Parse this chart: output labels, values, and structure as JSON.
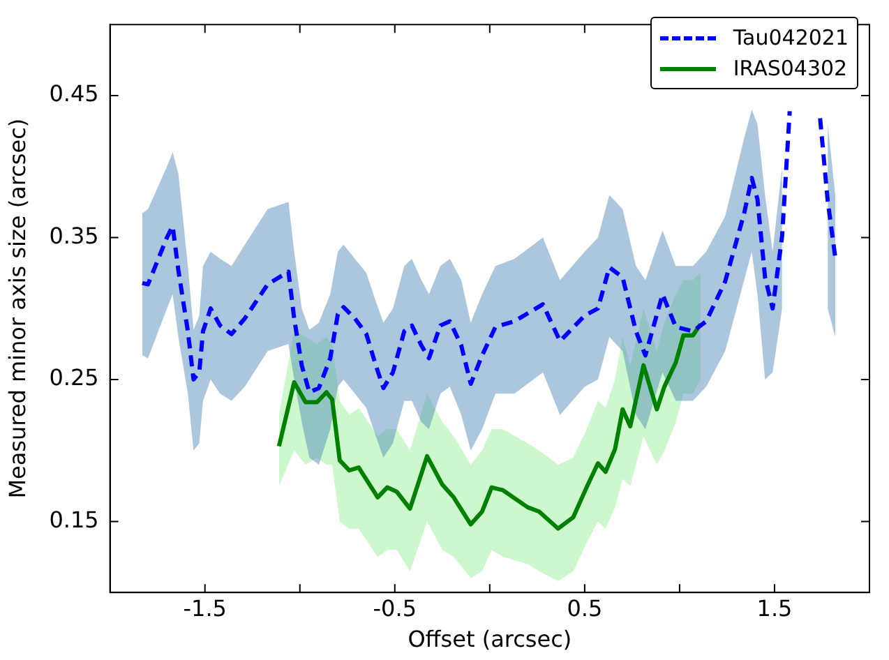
{
  "chart_data": {
    "type": "line",
    "xlabel": "Offset (arcsec)",
    "ylabel": "Measured minor axis size (arcsec)",
    "xlim": [
      -2,
      2
    ],
    "ylim": [
      0.1,
      0.5
    ],
    "xticks": [
      -1.5,
      {
        "value": -1,
        "label": null
      },
      -0.5,
      {
        "value": 0,
        "label": null
      },
      0.5,
      {
        "value": 1,
        "label": null
      },
      1.5
    ],
    "yticks": [
      0.15,
      0.25,
      0.35,
      0.45
    ],
    "grid": false,
    "legend": "top right",
    "marker": "none",
    "series": [
      {
        "name": "Tau042021",
        "color": "#0000ff",
        "line_style": "dashed",
        "x": [
          -1.83,
          -1.8,
          -1.7,
          -1.67,
          -1.64,
          -1.59,
          -1.56,
          -1.53,
          -1.51,
          -1.47,
          -1.42,
          -1.36,
          -1.29,
          -1.17,
          -1.06,
          -1.03,
          -0.99,
          -0.95,
          -0.9,
          -0.84,
          -0.8,
          -0.77,
          -0.71,
          -0.65,
          -0.6,
          -0.56,
          -0.51,
          -0.45,
          -0.41,
          -0.36,
          -0.32,
          -0.26,
          -0.21,
          -0.15,
          -0.1,
          -0.04,
          0.03,
          0.13,
          0.28,
          0.37,
          0.5,
          0.57,
          0.63,
          0.7,
          0.77,
          0.82,
          0.91,
          0.98,
          1.07,
          1.14,
          1.24,
          1.34,
          1.38,
          1.41,
          1.45,
          1.49,
          1.54,
          1.58,
          1.64,
          1.69,
          1.74,
          1.78,
          1.82
        ],
        "values": [
          0.318,
          0.317,
          0.35,
          0.358,
          0.327,
          0.284,
          0.25,
          0.255,
          0.284,
          0.3,
          0.288,
          0.282,
          0.293,
          0.317,
          0.326,
          0.293,
          0.26,
          0.241,
          0.244,
          0.265,
          0.296,
          0.301,
          0.293,
          0.282,
          0.26,
          0.244,
          0.255,
          0.284,
          0.288,
          0.274,
          0.265,
          0.288,
          0.291,
          0.274,
          0.247,
          0.267,
          0.287,
          0.291,
          0.303,
          0.277,
          0.295,
          0.3,
          0.329,
          0.322,
          0.284,
          0.267,
          0.31,
          0.287,
          0.284,
          0.291,
          0.319,
          0.367,
          0.392,
          0.377,
          0.322,
          0.3,
          0.351,
          0.439,
          null,
          null,
          0.434,
          0.376,
          0.336
        ],
        "lower": [
          0.267,
          0.265,
          0.3,
          0.31,
          0.28,
          0.24,
          0.2,
          0.205,
          0.235,
          0.25,
          0.24,
          0.235,
          0.245,
          0.27,
          0.275,
          0.25,
          0.22,
          0.195,
          0.19,
          0.215,
          0.245,
          0.25,
          0.24,
          0.23,
          0.21,
          0.195,
          0.205,
          0.235,
          0.235,
          0.22,
          0.215,
          0.24,
          0.245,
          0.225,
          0.2,
          0.215,
          0.24,
          0.24,
          0.255,
          0.225,
          0.245,
          0.25,
          0.28,
          0.27,
          0.225,
          0.215,
          0.255,
          0.235,
          0.235,
          0.245,
          0.27,
          0.32,
          0.34,
          0.31,
          0.25,
          0.255,
          0.3,
          null,
          null,
          null,
          null,
          0.3,
          0.28
        ],
        "upper": [
          0.367,
          0.37,
          0.4,
          0.41,
          0.395,
          0.33,
          0.285,
          0.295,
          0.33,
          0.34,
          0.335,
          0.33,
          0.345,
          0.37,
          0.375,
          0.34,
          0.3,
          0.285,
          0.29,
          0.31,
          0.34,
          0.345,
          0.335,
          0.325,
          0.305,
          0.29,
          0.3,
          0.33,
          0.335,
          0.32,
          0.31,
          0.33,
          0.335,
          0.32,
          0.29,
          0.31,
          0.33,
          0.335,
          0.35,
          0.32,
          0.34,
          0.35,
          0.38,
          0.37,
          0.33,
          0.32,
          0.355,
          0.33,
          0.33,
          0.34,
          0.365,
          0.42,
          0.44,
          0.43,
          0.38,
          0.34,
          0.4,
          null,
          null,
          null,
          null,
          0.43,
          0.38
        ]
      },
      {
        "name": "IRAS04302",
        "color": "#008000",
        "line_style": "solid",
        "x": [
          -1.11,
          -1.03,
          -0.97,
          -0.91,
          -0.86,
          -0.83,
          -0.79,
          -0.74,
          -0.69,
          -0.59,
          -0.54,
          -0.49,
          -0.42,
          -0.33,
          -0.25,
          -0.19,
          -0.1,
          -0.04,
          0.01,
          0.07,
          0.2,
          0.26,
          0.36,
          0.44,
          0.51,
          0.57,
          0.61,
          0.66,
          0.7,
          0.74,
          0.81,
          0.88,
          0.92,
          0.98,
          1.02,
          1.07,
          1.11
        ],
        "values": [
          0.203,
          0.248,
          0.234,
          0.234,
          0.241,
          0.236,
          0.193,
          0.186,
          0.188,
          0.167,
          0.174,
          0.171,
          0.159,
          0.196,
          0.176,
          0.167,
          0.148,
          0.157,
          0.174,
          0.172,
          0.16,
          0.157,
          0.145,
          0.153,
          0.174,
          0.191,
          0.185,
          0.201,
          0.229,
          0.217,
          0.26,
          0.229,
          0.245,
          0.262,
          0.281,
          0.281,
          0.289
        ],
        "lower": [
          0.175,
          0.2,
          0.19,
          0.195,
          0.19,
          0.19,
          0.15,
          0.145,
          0.145,
          0.125,
          0.13,
          0.13,
          0.115,
          0.15,
          0.13,
          0.125,
          0.11,
          0.115,
          0.13,
          0.125,
          0.12,
          0.115,
          0.108,
          0.115,
          0.135,
          0.15,
          0.145,
          0.16,
          0.18,
          0.175,
          0.21,
          0.19,
          0.2,
          0.22,
          0.24,
          0.24,
          0.25
        ],
        "upper": [
          0.225,
          0.285,
          0.28,
          0.275,
          0.28,
          0.275,
          0.235,
          0.225,
          0.23,
          0.21,
          0.215,
          0.215,
          0.2,
          0.24,
          0.22,
          0.21,
          0.19,
          0.2,
          0.215,
          0.215,
          0.205,
          0.2,
          0.19,
          0.195,
          0.215,
          0.235,
          0.23,
          0.25,
          0.28,
          0.26,
          0.3,
          0.27,
          0.29,
          0.31,
          0.32,
          0.32,
          0.325
        ]
      }
    ]
  }
}
